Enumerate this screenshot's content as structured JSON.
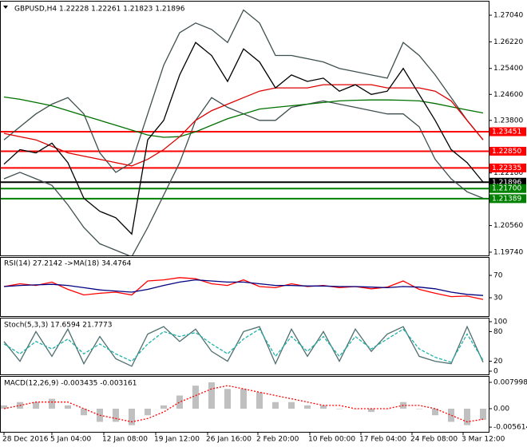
{
  "chart_data": [
    {
      "type": "line",
      "title": "GBPUSD,H4 1.22228 1.22261 1.21823 1.21896",
      "x": [
        0,
        1,
        2,
        3,
        4,
        5,
        6,
        7,
        8,
        9,
        10,
        11,
        12,
        13,
        14,
        15,
        16,
        17,
        18,
        19,
        20,
        21,
        22,
        23,
        24,
        25,
        26,
        27,
        28,
        29,
        30
      ],
      "xlim": [
        -0.25,
        30.35
      ],
      "ylim": [
        1.1964,
        1.2741
      ],
      "yticks": [
        {
          "value": 1.2704,
          "label": "1.27040"
        },
        {
          "value": 1.2622,
          "label": "1.26220"
        },
        {
          "value": 1.254,
          "label": "1.25400"
        },
        {
          "value": 1.246,
          "label": "1.24600"
        },
        {
          "value": 1.238,
          "label": "1.23800"
        },
        {
          "value": 1.2218,
          "label": "1.22180"
        },
        {
          "value": 1.2056,
          "label": "1.20560"
        },
        {
          "value": 1.1974,
          "label": "1.19740"
        }
      ],
      "levels": [
        {
          "value": 1.23451,
          "label": "1.23451",
          "color": "#ff0000"
        },
        {
          "value": 1.2285,
          "label": "1.22850",
          "color": "#ff0000"
        },
        {
          "value": 1.22335,
          "label": "1.22335",
          "color": "#ff0000"
        },
        {
          "value": 1.21896,
          "label": "1.21896",
          "color": "#000000"
        },
        {
          "value": 1.217,
          "label": "1.21700",
          "color": "#008000"
        },
        {
          "value": 1.21389,
          "label": "1.21389",
          "color": "#008000"
        }
      ],
      "series": [
        {
          "color": "#3f4f4f",
          "values": [
            1.232,
            1.236,
            1.24,
            1.243,
            1.245,
            1.24,
            1.228,
            1.222,
            1.225,
            1.24,
            1.255,
            1.265,
            1.268,
            1.266,
            1.262,
            1.272,
            1.268,
            1.258,
            1.258,
            1.257,
            1.256,
            1.254,
            1.253,
            1.252,
            1.251,
            1.262,
            1.258,
            1.252,
            1.245,
            1.238,
            1.232
          ]
        },
        {
          "color": "#3f4f4f",
          "values": [
            1.22,
            1.222,
            1.22,
            1.218,
            1.212,
            1.205,
            1.2,
            1.198,
            1.196,
            1.205,
            1.215,
            1.225,
            1.238,
            1.245,
            1.242,
            1.24,
            1.238,
            1.238,
            1.242,
            1.243,
            1.244,
            1.243,
            1.242,
            1.241,
            1.24,
            1.24,
            1.236,
            1.226,
            1.22,
            1.216,
            1.214
          ]
        },
        {
          "color": "#007000",
          "values": [
            1.2452,
            1.2445,
            1.2435,
            1.2425,
            1.241,
            1.2395,
            1.238,
            1.2365,
            1.235,
            1.2335,
            1.2328,
            1.233,
            1.2345,
            1.2365,
            1.2385,
            1.24,
            1.2415,
            1.242,
            1.2425,
            1.243,
            1.2435,
            1.244,
            1.2442,
            1.2443,
            1.2443,
            1.2442,
            1.244,
            1.2432,
            1.2422,
            1.2412,
            1.2403
          ]
        },
        {
          "color": "#e00000",
          "values": [
            1.234,
            1.233,
            1.232,
            1.23,
            1.228,
            1.227,
            1.226,
            1.225,
            1.224,
            1.226,
            1.229,
            1.233,
            1.238,
            1.241,
            1.243,
            1.245,
            1.247,
            1.248,
            1.248,
            1.248,
            1.249,
            1.249,
            1.249,
            1.249,
            1.248,
            1.248,
            1.248,
            1.247,
            1.244,
            1.238,
            1.232
          ]
        },
        {
          "color": "#000000",
          "values": [
            1.2245,
            1.229,
            1.228,
            1.231,
            1.225,
            1.214,
            1.21,
            1.208,
            1.203,
            1.232,
            1.238,
            1.252,
            1.262,
            1.258,
            1.25,
            1.26,
            1.256,
            1.248,
            1.252,
            1.25,
            1.251,
            1.247,
            1.249,
            1.246,
            1.247,
            1.254,
            1.246,
            1.238,
            1.229,
            1.225,
            1.219
          ]
        }
      ]
    },
    {
      "type": "line",
      "title": "RSI(14) 27.2142 ->MA(18) 34.4764",
      "x": [
        0,
        1,
        2,
        3,
        4,
        5,
        6,
        7,
        8,
        9,
        10,
        11,
        12,
        13,
        14,
        15,
        16,
        17,
        18,
        19,
        20,
        21,
        22,
        23,
        24,
        25,
        26,
        27,
        28,
        29,
        30
      ],
      "xlim": [
        -0.25,
        30.35
      ],
      "ylim": [
        0,
        100
      ],
      "yticks": [
        70,
        30
      ],
      "series": [
        {
          "color": "#ff0000",
          "values": [
            50,
            55,
            52,
            58,
            45,
            35,
            38,
            40,
            35,
            60,
            62,
            66,
            64,
            55,
            52,
            62,
            50,
            48,
            55,
            50,
            52,
            48,
            50,
            46,
            49,
            60,
            45,
            38,
            32,
            33,
            27
          ]
        },
        {
          "color": "#000080",
          "values": [
            50,
            52,
            53,
            54,
            52,
            48,
            44,
            42,
            40,
            45,
            52,
            58,
            62,
            60,
            58,
            58,
            55,
            52,
            52,
            51,
            51,
            50,
            50,
            49,
            48,
            50,
            49,
            46,
            40,
            36,
            34
          ]
        }
      ]
    },
    {
      "type": "line",
      "title": "Stoch(5,3,3) 17.6594 21.7773",
      "x": [
        0,
        1,
        2,
        3,
        4,
        5,
        6,
        7,
        8,
        9,
        10,
        11,
        12,
        13,
        14,
        15,
        16,
        17,
        18,
        19,
        20,
        21,
        22,
        23,
        24,
        25,
        26,
        27,
        28,
        29,
        30
      ],
      "xlim": [
        -0.25,
        30.35
      ],
      "ylim": [
        0,
        100
      ],
      "yticks": [
        100,
        80,
        20,
        0
      ],
      "series": [
        {
          "color": "#4f6f6f",
          "style": "solid",
          "values": [
            60,
            20,
            80,
            30,
            85,
            15,
            70,
            25,
            10,
            75,
            90,
            60,
            85,
            40,
            20,
            80,
            90,
            15,
            85,
            30,
            80,
            20,
            85,
            40,
            75,
            90,
            30,
            20,
            15,
            90,
            18
          ]
        },
        {
          "color": "#20b2aa",
          "style": "dashed",
          "values": [
            55,
            35,
            60,
            45,
            65,
            35,
            55,
            35,
            20,
            55,
            80,
            70,
            78,
            55,
            35,
            65,
            85,
            30,
            70,
            40,
            70,
            30,
            70,
            45,
            65,
            85,
            45,
            28,
            18,
            75,
            22
          ]
        }
      ]
    },
    {
      "type": "bar",
      "title": "MACD(12,26,9) -0.003435 -0.003161",
      "x": [
        0,
        1,
        2,
        3,
        4,
        5,
        6,
        7,
        8,
        9,
        10,
        11,
        12,
        13,
        14,
        15,
        16,
        17,
        18,
        19,
        20,
        21,
        22,
        23,
        24,
        25,
        26,
        27,
        28,
        29,
        30
      ],
      "xlim": [
        -0.25,
        30.35
      ],
      "ylim": [
        -0.0068,
        0.0097
      ],
      "yticks": [
        0.007998,
        {
          "value": 0,
          "label": "0.00"
        },
        -0.005614
      ],
      "xticks": [
        {
          "value": 0,
          "label": "28 Dec 2016"
        },
        {
          "value": 3,
          "label": "5 Jan 04:00"
        },
        {
          "value": 6.25,
          "label": "12 Jan 08:00"
        },
        {
          "value": 9.5,
          "label": "19 Jan 12:00"
        },
        {
          "value": 12.75,
          "label": "26 Jan 16:00"
        },
        {
          "value": 15.9,
          "label": "2 Feb 20:00"
        },
        {
          "value": 19.15,
          "label": "10 Feb 00:00"
        },
        {
          "value": 22.35,
          "label": "17 Feb 04:00"
        },
        {
          "value": 25.55,
          "label": "24 Feb 08:00"
        },
        {
          "value": 28.75,
          "label": "3 Mar 12:00"
        }
      ],
      "series": [
        {
          "type": "bar",
          "color": "#c0c0c0",
          "values": [
            0.001,
            0.002,
            0.002,
            0.003,
            0.001,
            -0.002,
            -0.004,
            -0.004,
            -0.005,
            -0.002,
            0.001,
            0.004,
            0.007,
            0.008,
            0.006,
            0.006,
            0.005,
            0.002,
            0.002,
            0.001,
            0.001,
            0,
            0,
            -0.001,
            0,
            0.002,
            0,
            -0.002,
            -0.004,
            -0.005,
            -0.0034
          ]
        },
        {
          "type": "line",
          "color": "#ff0000",
          "style": "dotted",
          "values": [
            0,
            0.001,
            0.002,
            0.002,
            0.002,
            0,
            -0.002,
            -0.003,
            -0.004,
            -0.003,
            -0.001,
            0.002,
            0.004,
            0.006,
            0.007,
            0.006,
            0.005,
            0.004,
            0.003,
            0.002,
            0.001,
            0.001,
            0,
            0,
            0,
            0.001,
            0.001,
            0,
            -0.002,
            -0.004,
            -0.0032
          ]
        }
      ]
    }
  ]
}
